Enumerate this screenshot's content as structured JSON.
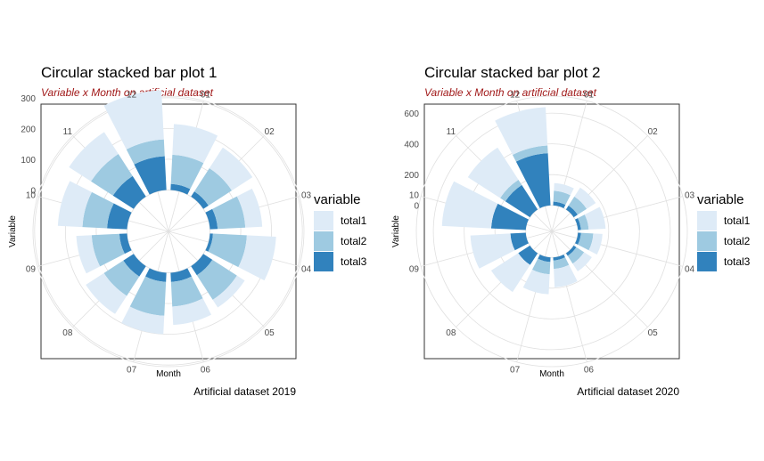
{
  "colors": {
    "total1": "#deebf7",
    "total2": "#9ecae1",
    "total3": "#3182bd",
    "grid": "#e0e0e0",
    "panel_border": "#333333",
    "subtitle": "#a11a1a"
  },
  "chart_data": [
    {
      "type": "bar",
      "coordinate_system": "polar",
      "stacked": true,
      "title": "Circular stacked bar plot 1",
      "subtitle": "Variable x Month on artificial dataset",
      "xlabel": "Month",
      "ylabel": "Variable",
      "caption": "Artificial dataset 2019",
      "ylim": [
        -100,
        340
      ],
      "y_ticks": [
        "0",
        "100",
        "200",
        "300"
      ],
      "categories": [
        "01",
        "02",
        "03",
        "04",
        "05",
        "06",
        "07",
        "08",
        "09",
        "10",
        "11",
        "12"
      ],
      "series": [
        {
          "name": "total3",
          "values": [
            20,
            20,
            25,
            10,
            35,
            30,
            30,
            40,
            25,
            65,
            80,
            110
          ]
        },
        {
          "name": "total2",
          "values": [
            95,
            90,
            90,
            110,
            95,
            80,
            110,
            75,
            90,
            80,
            85,
            55
          ]
        },
        {
          "name": "total1",
          "values": [
            100,
            80,
            55,
            95,
            30,
            60,
            60,
            70,
            50,
            80,
            85,
            160
          ]
        }
      ],
      "legend": {
        "title": "variable",
        "entries": [
          "total1",
          "total2",
          "total3"
        ],
        "position": "right"
      },
      "grid": true
    },
    {
      "type": "bar",
      "coordinate_system": "polar",
      "stacked": true,
      "title": "Circular stacked bar plot 2",
      "subtitle": "Variable x Month on artificial dataset",
      "xlabel": "Month",
      "ylabel": "Variable",
      "caption": "Artificial dataset 2020",
      "ylim": [
        -100,
        780
      ],
      "y_ticks": [
        "0",
        "200",
        "400",
        "600"
      ],
      "categories": [
        "01",
        "02",
        "03",
        "04",
        "05",
        "06",
        "07",
        "08",
        "09",
        "10",
        "11",
        "12"
      ],
      "series": [
        {
          "name": "total3",
          "values": [
            25,
            30,
            20,
            20,
            20,
            20,
            30,
            90,
            100,
            225,
            190,
            340
          ]
        },
        {
          "name": "total2",
          "values": [
            70,
            70,
            50,
            80,
            60,
            55,
            80,
            0,
            0,
            0,
            40,
            50
          ]
        },
        {
          "name": "total1",
          "values": [
            50,
            70,
            110,
            60,
            60,
            120,
            130,
            210,
            260,
            320,
            250,
            250
          ]
        }
      ],
      "legend": {
        "title": "variable",
        "entries": [
          "total1",
          "total2",
          "total3"
        ],
        "position": "right"
      },
      "grid": true
    }
  ]
}
